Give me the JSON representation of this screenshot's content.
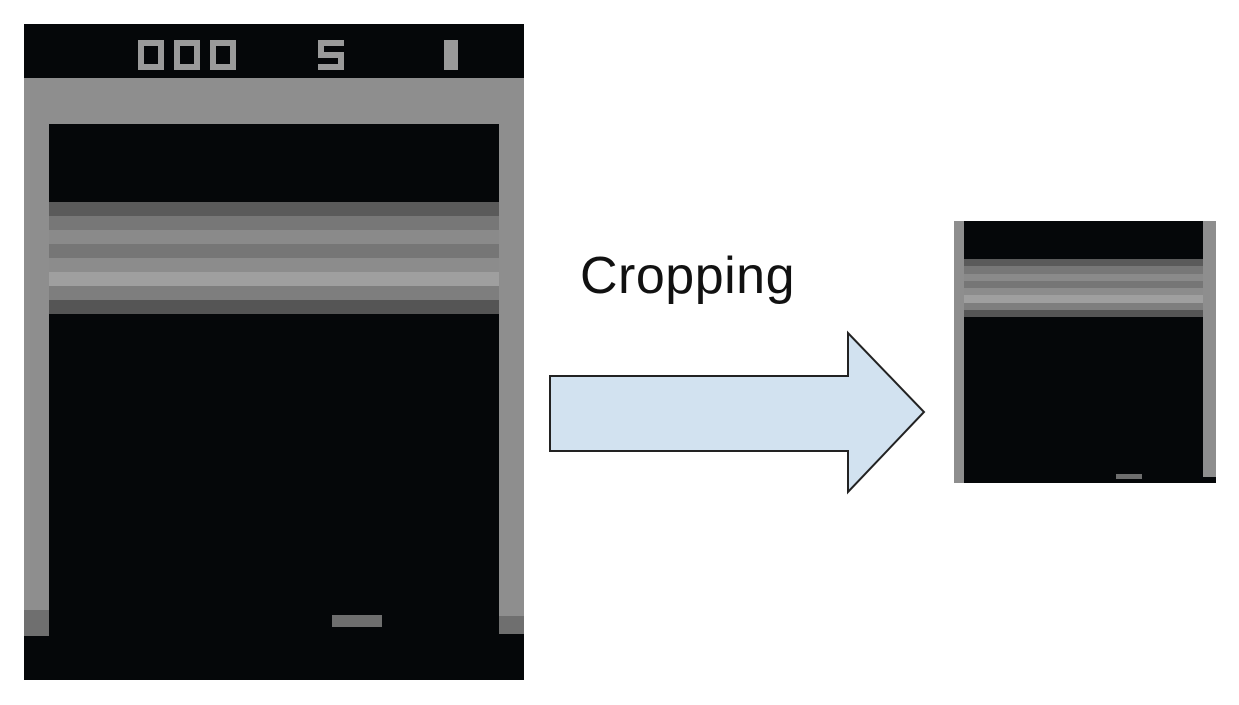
{
  "game": {
    "title_label": "Cropping",
    "score": "000",
    "lives": "5",
    "player": "1",
    "brick_row_colors": [
      "#5a5a5a",
      "#777777",
      "#8a8a8a",
      "#767676",
      "#8c8c8c",
      "#9f9f9f",
      "#7e7e7e",
      "#555555"
    ],
    "colors": {
      "background": "#050709",
      "wall": "#8e8e8e",
      "paddle": "#6e6e6e",
      "arrow_fill": "#d2e2f0",
      "arrow_stroke": "#222222",
      "page": "#ffffff"
    }
  }
}
